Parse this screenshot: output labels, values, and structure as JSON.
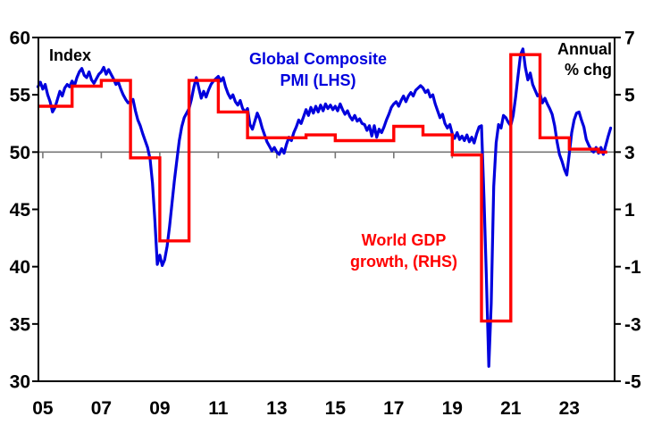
{
  "chart_data": {
    "type": "line",
    "grid": "horizontal-reference-line-only",
    "legend_position": "in-plot-annotations",
    "colors": {
      "pmi_blue": "#0000dd",
      "gdp_red": "#ff0000",
      "axis_black": "#000000",
      "reference_gray": "#777777"
    },
    "left_axis": {
      "title": "Index",
      "min": 30,
      "max": 60,
      "tick_values": [
        60,
        55,
        50,
        45,
        40,
        35,
        30
      ],
      "tick_labels": [
        "60",
        "55",
        "50",
        "45",
        "40",
        "35",
        "30"
      ]
    },
    "right_axis": {
      "title": "Annual\n% chg",
      "min": -5,
      "max": 7,
      "tick_values": [
        7,
        5,
        3,
        1,
        -1,
        -3,
        -5
      ],
      "tick_labels": [
        "7",
        "5",
        "3",
        "1",
        "-1",
        "-3",
        "-5"
      ]
    },
    "x_axis": {
      "min": 2004.85,
      "max": 2024.55,
      "tick_years": [
        2005,
        2007,
        2009,
        2011,
        2013,
        2015,
        2017,
        2019,
        2021,
        2023
      ],
      "tick_labels": [
        "05",
        "07",
        "09",
        "11",
        "13",
        "15",
        "17",
        "19",
        "21",
        "23"
      ]
    },
    "reference_line": {
      "left_value": 50,
      "right_value": 3
    },
    "series": [
      {
        "name": "Global Composite PMI (LHS)",
        "axis": "left",
        "style": "line",
        "color": "#0000dd",
        "start_year": 2004.8333,
        "interval_years": 0.083333,
        "values": [
          55.7,
          56.1,
          55.5,
          55.9,
          55.0,
          54.4,
          53.5,
          53.9,
          54.6,
          55.3,
          54.9,
          55.6,
          55.9,
          55.7,
          56.2,
          55.8,
          56.5,
          57.0,
          57.3,
          56.7,
          56.5,
          57.0,
          56.3,
          56.0,
          56.4,
          56.8,
          57.0,
          57.4,
          56.8,
          57.2,
          56.8,
          56.4,
          55.9,
          56.1,
          55.5,
          55.0,
          54.6,
          54.3,
          54.4,
          54.6,
          53.6,
          52.8,
          52.3,
          51.6,
          51.0,
          50.4,
          49.4,
          47.3,
          44.0,
          40.2,
          41.0,
          40.1,
          40.6,
          41.8,
          43.5,
          45.5,
          47.5,
          49.3,
          51.0,
          52.2,
          53.0,
          53.4,
          53.8,
          54.6,
          55.7,
          56.5,
          55.6,
          54.7,
          55.3,
          54.8,
          55.4,
          55.9,
          56.2,
          56.4,
          56.6,
          56.2,
          56.5,
          55.7,
          55.1,
          54.7,
          55.0,
          54.4,
          54.1,
          54.5,
          53.8,
          53.5,
          53.8,
          52.4,
          52.0,
          52.7,
          53.4,
          52.9,
          52.1,
          51.5,
          50.9,
          50.5,
          50.1,
          50.4,
          50.0,
          49.8,
          50.3,
          49.9,
          50.7,
          51.3,
          51.0,
          51.7,
          52.2,
          52.8,
          52.5,
          53.1,
          53.7,
          53.2,
          53.9,
          53.4,
          54.0,
          53.5,
          54.1,
          53.6,
          54.2,
          53.8,
          54.1,
          53.7,
          54.0,
          53.6,
          54.2,
          53.7,
          53.3,
          53.6,
          53.1,
          52.8,
          53.2,
          52.7,
          52.9,
          52.5,
          52.4,
          51.9,
          52.3,
          51.4,
          52.3,
          51.3,
          52.0,
          51.7,
          52.2,
          52.8,
          53.3,
          53.9,
          54.2,
          54.4,
          54.0,
          54.5,
          54.9,
          54.4,
          54.9,
          55.2,
          54.9,
          55.4,
          55.6,
          55.8,
          55.6,
          55.2,
          55.4,
          54.8,
          55.0,
          54.2,
          53.6,
          53.0,
          53.3,
          52.5,
          52.1,
          52.4,
          51.6,
          51.2,
          51.7,
          51.1,
          51.4,
          51.0,
          51.5,
          50.9,
          51.3,
          50.8,
          51.6,
          52.2,
          52.3,
          46.0,
          39.0,
          31.3,
          36.8,
          47.0,
          50.8,
          52.4,
          52.1,
          53.2,
          53.0,
          52.6,
          52.3,
          53.2,
          54.8,
          56.7,
          58.5,
          59.0,
          57.4,
          56.3,
          56.9,
          55.9,
          55.4,
          54.9,
          55.1,
          54.3,
          54.7,
          54.2,
          53.8,
          53.3,
          52.3,
          50.9,
          49.8,
          49.2,
          48.5,
          48.0,
          49.8,
          51.7,
          52.8,
          53.4,
          53.5,
          52.8,
          52.2,
          51.1,
          50.6,
          50.2,
          50.0,
          50.4,
          49.9,
          50.4,
          49.8,
          50.6,
          51.4,
          52.1
        ]
      },
      {
        "name": "World GDP growth, (RHS)",
        "axis": "right",
        "style": "step",
        "color": "#ff0000",
        "start_x": 2004.85,
        "end_x": 2024.3,
        "years": [
          2005,
          2006,
          2007,
          2008,
          2009,
          2010,
          2011,
          2012,
          2013,
          2014,
          2015,
          2016,
          2017,
          2018,
          2019,
          2020,
          2021,
          2022,
          2023,
          2024
        ],
        "values": [
          4.6,
          5.3,
          5.5,
          2.8,
          -0.1,
          5.5,
          4.4,
          3.5,
          3.5,
          3.6,
          3.4,
          3.4,
          3.9,
          3.6,
          2.9,
          -2.9,
          6.4,
          3.5,
          3.1,
          3.0
        ]
      }
    ],
    "annotations": {
      "left_axis_title": "Index",
      "right_axis_title": "Annual\n% chg",
      "pmi_label": "Global Composite\nPMI (LHS)",
      "gdp_label": "World GDP\ngrowth, (RHS)"
    }
  }
}
